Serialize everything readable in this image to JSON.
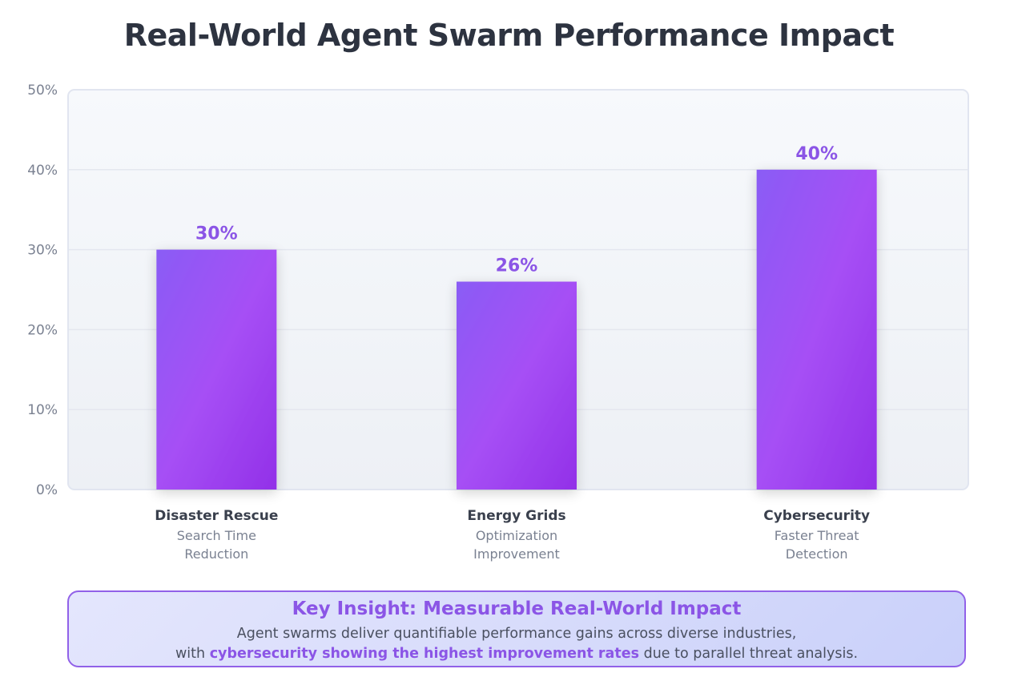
{
  "chart_data": {
    "type": "bar",
    "title": "Real-World Agent Swarm Performance Impact",
    "xlabel": "",
    "ylabel": "",
    "ylim": [
      0,
      50
    ],
    "yticks": [
      "0%",
      "10%",
      "20%",
      "30%",
      "40%",
      "50%"
    ],
    "ytick_values": [
      0,
      10,
      20,
      30,
      40,
      50
    ],
    "grid": true,
    "categories": [
      "Disaster Rescue",
      "Energy Grids",
      "Cybersecurity"
    ],
    "subtitles": [
      [
        "Search Time",
        "Reduction"
      ],
      [
        "Optimization",
        "Improvement"
      ],
      [
        "Faster Threat",
        "Detection"
      ]
    ],
    "values": [
      30,
      26,
      40
    ],
    "value_labels": [
      "30%",
      "26%",
      "40%"
    ],
    "colors": {
      "bar_top": "#8a5cf5",
      "bar_mid": "#a64ff5",
      "bar_bottom": "#9230e8",
      "value_label": "#8b55e6"
    }
  },
  "insight": {
    "title": "Key Insight: Measurable Real-World Impact",
    "line1": "Agent swarms deliver quantifiable performance gains across diverse industries,",
    "line2_pre": "with",
    "line2_highlight": "cybersecurity showing the highest improvement rates",
    "line2_post": "due to parallel threat analysis."
  }
}
